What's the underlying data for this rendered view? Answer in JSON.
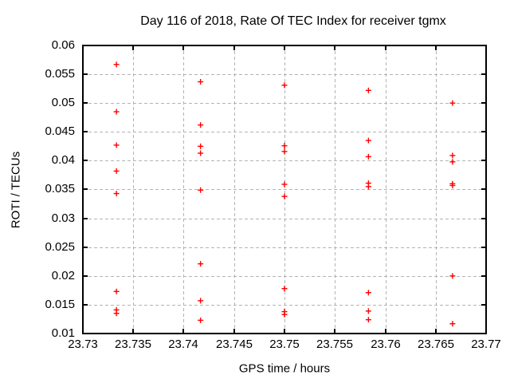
{
  "chart_data": {
    "type": "scatter",
    "title": "Day 116 of 2018, Rate Of TEC Index for receiver tgmx",
    "xlabel": "GPS time / hours",
    "ylabel": "ROTI / TECUs",
    "xlim": [
      23.73,
      23.77
    ],
    "ylim": [
      0.01,
      0.06
    ],
    "xtick_values": [
      23.73,
      23.735,
      23.74,
      23.745,
      23.75,
      23.755,
      23.76,
      23.765,
      23.77
    ],
    "xtick_labels": [
      "23.73",
      "23.735",
      "23.74",
      "23.745",
      "23.75",
      "23.755",
      "23.76",
      "23.765",
      "23.77"
    ],
    "ytick_values": [
      0.01,
      0.015,
      0.02,
      0.025,
      0.03,
      0.035,
      0.04,
      0.045,
      0.05,
      0.055,
      0.06
    ],
    "ytick_labels": [
      "0.01",
      "0.015",
      "0.02",
      "0.025",
      "0.03",
      "0.035",
      "0.04",
      "0.045",
      "0.05",
      "0.055",
      "0.06"
    ],
    "grid": true,
    "legend": false,
    "marker": "plus",
    "marker_color": "#ff0000",
    "grid_color": "#b3b3b3",
    "axis_color": "#000000",
    "series": [
      {
        "points": [
          [
            23.73333,
            0.0567
          ],
          [
            23.73333,
            0.0485
          ],
          [
            23.73333,
            0.0427
          ],
          [
            23.73333,
            0.0382
          ],
          [
            23.73333,
            0.0343
          ],
          [
            23.73333,
            0.0173
          ],
          [
            23.73333,
            0.0141
          ],
          [
            23.73333,
            0.0135
          ],
          [
            23.74167,
            0.0537
          ],
          [
            23.74167,
            0.0462
          ],
          [
            23.74167,
            0.0425
          ],
          [
            23.74167,
            0.0413
          ],
          [
            23.74167,
            0.0349
          ],
          [
            23.74167,
            0.0221
          ],
          [
            23.74167,
            0.0157
          ],
          [
            23.74167,
            0.0123
          ],
          [
            23.75,
            0.0531
          ],
          [
            23.75,
            0.0426
          ],
          [
            23.75,
            0.0416
          ],
          [
            23.75,
            0.0359
          ],
          [
            23.75,
            0.0338
          ],
          [
            23.75,
            0.0178
          ],
          [
            23.75,
            0.0138
          ],
          [
            23.75,
            0.0133
          ],
          [
            23.75833,
            0.0522
          ],
          [
            23.75833,
            0.0435
          ],
          [
            23.75833,
            0.0407
          ],
          [
            23.75833,
            0.0361
          ],
          [
            23.75833,
            0.0355
          ],
          [
            23.75833,
            0.0171
          ],
          [
            23.75833,
            0.0139
          ],
          [
            23.75833,
            0.0124
          ],
          [
            23.76667,
            0.05
          ],
          [
            23.76667,
            0.0409
          ],
          [
            23.76667,
            0.0398
          ],
          [
            23.76667,
            0.036
          ],
          [
            23.76667,
            0.0357
          ],
          [
            23.76667,
            0.02
          ],
          [
            23.76667,
            0.0117
          ]
        ]
      }
    ]
  }
}
